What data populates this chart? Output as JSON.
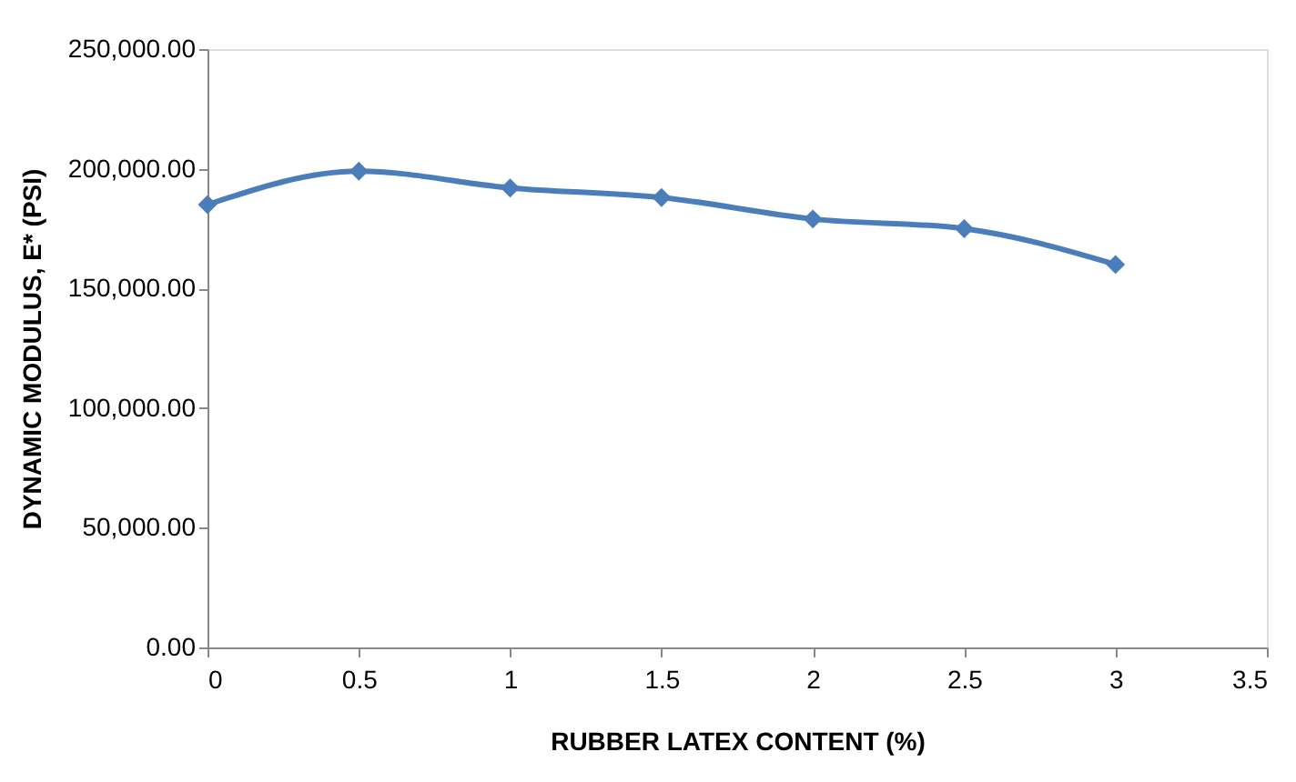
{
  "chart_data": {
    "type": "line",
    "xlabel": "RUBBER LATEX CONTENT (%)",
    "ylabel": "DYNAMIC MODULUS, E* (PSI)",
    "x": [
      0,
      0.5,
      1,
      1.5,
      2,
      2.5,
      3
    ],
    "series": [
      {
        "color": "#4a7ebb",
        "values": [
          185000,
          199000,
          192000,
          188000,
          179000,
          175000,
          160000
        ]
      }
    ],
    "xlim": [
      0,
      3.5
    ],
    "xticks": [
      0,
      0.5,
      1,
      1.5,
      2,
      2.5,
      3,
      3.5
    ],
    "ylim": [
      0,
      250000
    ],
    "yticks": [
      {
        "value": 0,
        "label": "0.00"
      },
      {
        "value": 50000,
        "label": "50,000.00"
      },
      {
        "value": 100000,
        "label": "100,000.00"
      },
      {
        "value": 150000,
        "label": "150,000.00"
      },
      {
        "value": 200000,
        "label": "200,000.00"
      },
      {
        "value": 250000,
        "label": "250,000.00"
      }
    ],
    "marker": "diamond",
    "line_style": "solid",
    "grid": false,
    "legend": false
  }
}
